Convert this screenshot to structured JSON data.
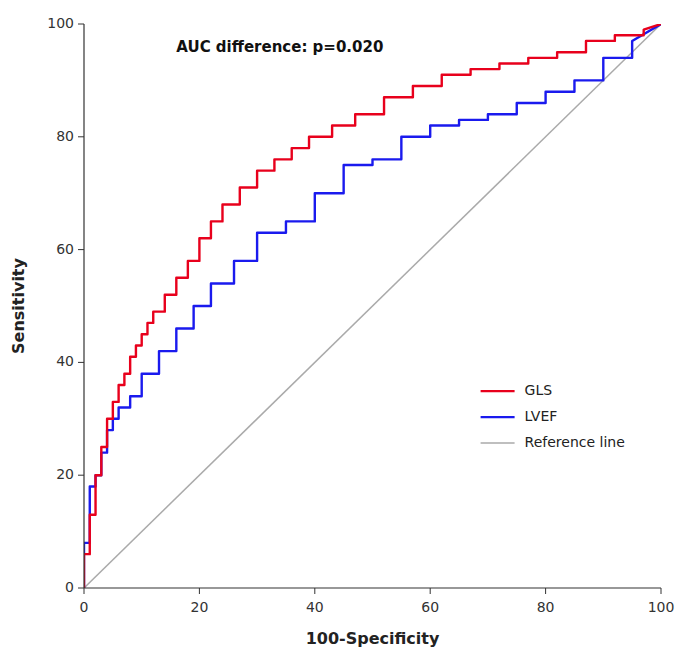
{
  "chart_data": {
    "type": "line",
    "xlabel": "100-Specificity",
    "ylabel": "Sensitivity",
    "xlim": [
      0,
      100
    ],
    "ylim": [
      0,
      100
    ],
    "xticks": [
      0,
      20,
      40,
      60,
      80,
      100
    ],
    "yticks": [
      0,
      20,
      40,
      60,
      80,
      100
    ],
    "grid": false,
    "legend": "lower right",
    "annotations": [
      {
        "text": "AUC difference: p=0.020",
        "x": 16,
        "y": 97
      }
    ],
    "series": [
      {
        "name": "GLS",
        "color": "#e8001c",
        "x": [
          0,
          0,
          1,
          1,
          2,
          2,
          2,
          3,
          3,
          4,
          4,
          5,
          5,
          6,
          6,
          7,
          7,
          8,
          8,
          9,
          9,
          10,
          10,
          11,
          11,
          12,
          12,
          14,
          14,
          16,
          16,
          18,
          18,
          20,
          20,
          22,
          22,
          24,
          24,
          27,
          27,
          30,
          30,
          33,
          33,
          36,
          36,
          39,
          39,
          43,
          43,
          47,
          47,
          52,
          52,
          57,
          57,
          62,
          62,
          67,
          67,
          72,
          72,
          77,
          77,
          82,
          82,
          87,
          87,
          92,
          92,
          97,
          97,
          100
        ],
        "values": [
          0,
          6,
          6,
          13,
          13,
          19,
          20,
          20,
          25,
          25,
          30,
          30,
          33,
          33,
          36,
          36,
          38,
          38,
          41,
          41,
          43,
          43,
          45,
          45,
          47,
          47,
          49,
          49,
          52,
          52,
          55,
          55,
          58,
          58,
          62,
          62,
          65,
          65,
          68,
          68,
          71,
          71,
          74,
          74,
          76,
          76,
          78,
          78,
          80,
          80,
          82,
          82,
          84,
          84,
          87,
          87,
          89,
          89,
          91,
          91,
          92,
          92,
          93,
          93,
          94,
          94,
          95,
          95,
          97,
          97,
          98,
          98,
          99,
          100
        ]
      },
      {
        "name": "LVEF",
        "color": "#1a1aee",
        "x": [
          0,
          0,
          1,
          1,
          2,
          2,
          3,
          3,
          4,
          4,
          5,
          5,
          6,
          6,
          8,
          8,
          10,
          10,
          13,
          13,
          16,
          16,
          19,
          19,
          22,
          22,
          26,
          26,
          30,
          30,
          35,
          35,
          40,
          40,
          45,
          45,
          50,
          50,
          55,
          55,
          60,
          60,
          65,
          65,
          70,
          70,
          75,
          75,
          80,
          80,
          85,
          85,
          90,
          90,
          95,
          95,
          100
        ],
        "values": [
          0,
          8,
          8,
          18,
          18,
          20,
          20,
          24,
          24,
          28,
          28,
          30,
          30,
          32,
          32,
          34,
          34,
          38,
          38,
          42,
          42,
          46,
          46,
          50,
          50,
          54,
          54,
          58,
          58,
          63,
          63,
          65,
          65,
          70,
          70,
          75,
          75,
          76,
          76,
          80,
          80,
          82,
          82,
          83,
          83,
          84,
          84,
          86,
          86,
          88,
          88,
          90,
          90,
          94,
          94,
          97,
          100
        ]
      },
      {
        "name": "Reference line",
        "color": "#aaaaaa",
        "x": [
          0,
          100
        ],
        "values": [
          0,
          100
        ]
      }
    ]
  }
}
